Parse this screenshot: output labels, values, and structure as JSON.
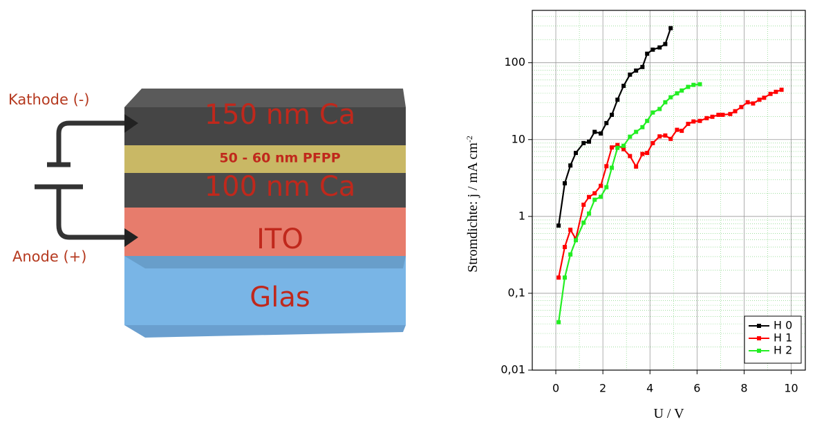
{
  "diagram": {
    "layers": [
      "150 nm Ca",
      "50 - 60 nm PFPP",
      "100 nm Ca",
      "ITO",
      "Glas"
    ],
    "cathode": "Kathode (-)",
    "anode": "Anode (+)"
  },
  "chart_data": {
    "type": "line",
    "log_y": true,
    "grid": true,
    "legend": "lower right",
    "xlabel": "U / V",
    "ylabel": "Stromdichte: j / mA cm",
    "ylabel_superscript": "-2",
    "xlim": [
      -1,
      10.6
    ],
    "xticks": [
      0,
      2,
      4,
      6,
      8,
      10
    ],
    "ylim": [
      0.01,
      480
    ],
    "yticks": [
      {
        "value": 0.01,
        "label": "0,01"
      },
      {
        "value": 0.1,
        "label": "0,1"
      },
      1,
      10,
      100
    ],
    "series": [
      {
        "name": "H 0",
        "color": "#000000",
        "x": [
          0.12,
          0.38,
          0.62,
          0.85,
          1.18,
          1.41,
          1.65,
          1.91,
          2.15,
          2.38,
          2.62,
          2.88,
          3.15,
          3.41,
          3.68,
          3.88,
          4.12,
          4.41,
          4.65,
          4.88
        ],
        "values": [
          0.76,
          2.7,
          4.6,
          6.7,
          9.0,
          9.4,
          12.6,
          12,
          16.4,
          21,
          33,
          50,
          70,
          79,
          88,
          131,
          148,
          158,
          175,
          282
        ]
      },
      {
        "name": "H 1",
        "color": "#ff0000",
        "x": [
          0.12,
          0.38,
          0.62,
          0.85,
          1.18,
          1.41,
          1.65,
          1.91,
          2.15,
          2.38,
          2.62,
          2.88,
          3.15,
          3.41,
          3.68,
          3.88,
          4.12,
          4.41,
          4.65,
          4.88,
          5.15,
          5.35,
          5.62,
          5.85,
          6.12,
          6.41,
          6.65,
          6.91,
          7.09,
          7.41,
          7.62,
          7.88,
          8.15,
          8.38,
          8.65,
          8.85,
          9.12,
          9.35,
          9.59
        ],
        "values": [
          0.16,
          0.4,
          0.67,
          0.51,
          1.42,
          1.79,
          2.0,
          2.5,
          4.5,
          7.9,
          8.5,
          7.5,
          6.1,
          4.45,
          6.5,
          6.7,
          9.0,
          11,
          11.3,
          10.2,
          13.4,
          13,
          16,
          17.2,
          17.5,
          19,
          19.8,
          21,
          21,
          21.5,
          23.4,
          26.5,
          30.6,
          29.5,
          33,
          35,
          39.3,
          41.8,
          44.5
        ]
      },
      {
        "name": "H 2",
        "color": "#22ee22",
        "x": [
          0.12,
          0.38,
          0.62,
          0.85,
          1.18,
          1.41,
          1.65,
          1.91,
          2.15,
          2.38,
          2.62,
          2.88,
          3.15,
          3.41,
          3.68,
          3.88,
          4.12,
          4.41,
          4.65,
          4.88,
          5.15,
          5.35,
          5.62,
          5.85,
          6.12
        ],
        "values": [
          0.042,
          0.16,
          0.32,
          0.49,
          0.83,
          1.09,
          1.65,
          1.8,
          2.4,
          4.3,
          7.8,
          8.3,
          10.9,
          12.6,
          14.5,
          17.5,
          22.5,
          25,
          30.6,
          35.5,
          40,
          43.5,
          48.5,
          51.5,
          52.5
        ]
      }
    ]
  }
}
